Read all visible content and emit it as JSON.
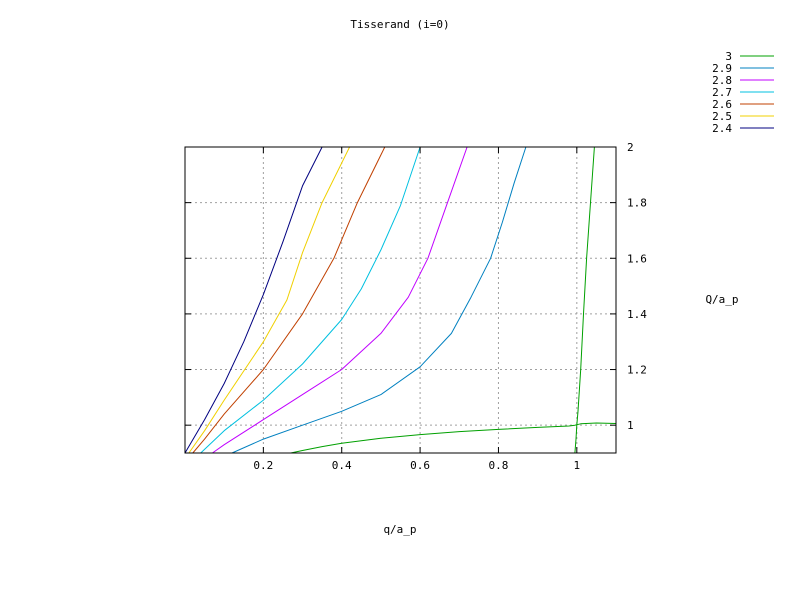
{
  "chart_data": {
    "type": "line",
    "title": "Tisserand (i=0)",
    "xlabel": "q/a_p",
    "ylabel": "Q/a_p",
    "xlim": [
      0,
      1.1
    ],
    "ylim": [
      0.9,
      2.0
    ],
    "x_ticks": [
      0.2,
      0.4,
      0.6,
      0.8,
      1
    ],
    "y_ticks": [
      1,
      1.2,
      1.4,
      1.6,
      1.8,
      2
    ],
    "grid": true,
    "legend_position": "top-right",
    "series": [
      {
        "name": "3",
        "color": "#00a000",
        "segments": [
          [
            [
              0.27,
              0.9
            ],
            [
              0.3,
              0.909
            ],
            [
              0.35,
              0.923
            ],
            [
              0.4,
              0.935
            ],
            [
              0.5,
              0.953
            ],
            [
              0.6,
              0.966
            ],
            [
              0.7,
              0.977
            ],
            [
              0.8,
              0.985
            ],
            [
              0.9,
              0.992
            ],
            [
              0.98,
              0.997
            ],
            [
              0.995,
              1.0
            ],
            [
              1.01,
              1.005
            ],
            [
              1.05,
              1.008
            ],
            [
              1.1,
              1.006
            ]
          ],
          [
            [
              0.995,
              0.9
            ],
            [
              0.998,
              0.95
            ],
            [
              1.0,
              1.0
            ],
            [
              1.003,
              1.05
            ],
            [
              1.01,
              1.2
            ],
            [
              1.017,
              1.4
            ],
            [
              1.025,
              1.6
            ],
            [
              1.035,
              1.8
            ],
            [
              1.045,
              2.0
            ]
          ]
        ]
      },
      {
        "name": "2.9",
        "color": "#0080c0",
        "segments": [
          [
            [
              0.12,
              0.9
            ],
            [
              0.2,
              0.95
            ],
            [
              0.3,
              1.0
            ],
            [
              0.4,
              1.05
            ],
            [
              0.5,
              1.11
            ],
            [
              0.6,
              1.21
            ],
            [
              0.68,
              1.33
            ],
            [
              0.73,
              1.46
            ],
            [
              0.78,
              1.6
            ],
            [
              0.81,
              1.73
            ],
            [
              0.84,
              1.87
            ],
            [
              0.87,
              2.0
            ]
          ]
        ]
      },
      {
        "name": "2.8",
        "color": "#c000ff",
        "segments": [
          [
            [
              0.07,
              0.9
            ],
            [
              0.1,
              0.93
            ],
            [
              0.2,
              1.02
            ],
            [
              0.3,
              1.11
            ],
            [
              0.4,
              1.2
            ],
            [
              0.5,
              1.33
            ],
            [
              0.57,
              1.46
            ],
            [
              0.62,
              1.6
            ],
            [
              0.67,
              1.8
            ],
            [
              0.72,
              2.0
            ]
          ]
        ]
      },
      {
        "name": "2.7",
        "color": "#00c0e0",
        "segments": [
          [
            [
              0.04,
              0.9
            ],
            [
              0.1,
              0.98
            ],
            [
              0.2,
              1.09
            ],
            [
              0.3,
              1.22
            ],
            [
              0.4,
              1.38
            ],
            [
              0.45,
              1.49
            ],
            [
              0.5,
              1.63
            ],
            [
              0.55,
              1.79
            ],
            [
              0.6,
              2.0
            ]
          ]
        ]
      },
      {
        "name": "2.6",
        "color": "#c04000",
        "segments": [
          [
            [
              0.02,
              0.9
            ],
            [
              0.05,
              0.95
            ],
            [
              0.1,
              1.04
            ],
            [
              0.2,
              1.2
            ],
            [
              0.3,
              1.4
            ],
            [
              0.38,
              1.6
            ],
            [
              0.44,
              1.8
            ],
            [
              0.51,
              2.0
            ]
          ]
        ]
      },
      {
        "name": "2.5",
        "color": "#f0d000",
        "segments": [
          [
            [
              0.01,
              0.9
            ],
            [
              0.05,
              0.98
            ],
            [
              0.1,
              1.09
            ],
            [
              0.2,
              1.3
            ],
            [
              0.26,
              1.45
            ],
            [
              0.3,
              1.62
            ],
            [
              0.35,
              1.8
            ],
            [
              0.42,
              2.0
            ]
          ]
        ]
      },
      {
        "name": "2.4",
        "color": "#000080",
        "segments": [
          [
            [
              0.0,
              0.9
            ],
            [
              0.05,
              1.02
            ],
            [
              0.1,
              1.15
            ],
            [
              0.15,
              1.3
            ],
            [
              0.2,
              1.47
            ],
            [
              0.25,
              1.66
            ],
            [
              0.3,
              1.86
            ],
            [
              0.35,
              2.0
            ]
          ]
        ]
      }
    ]
  }
}
